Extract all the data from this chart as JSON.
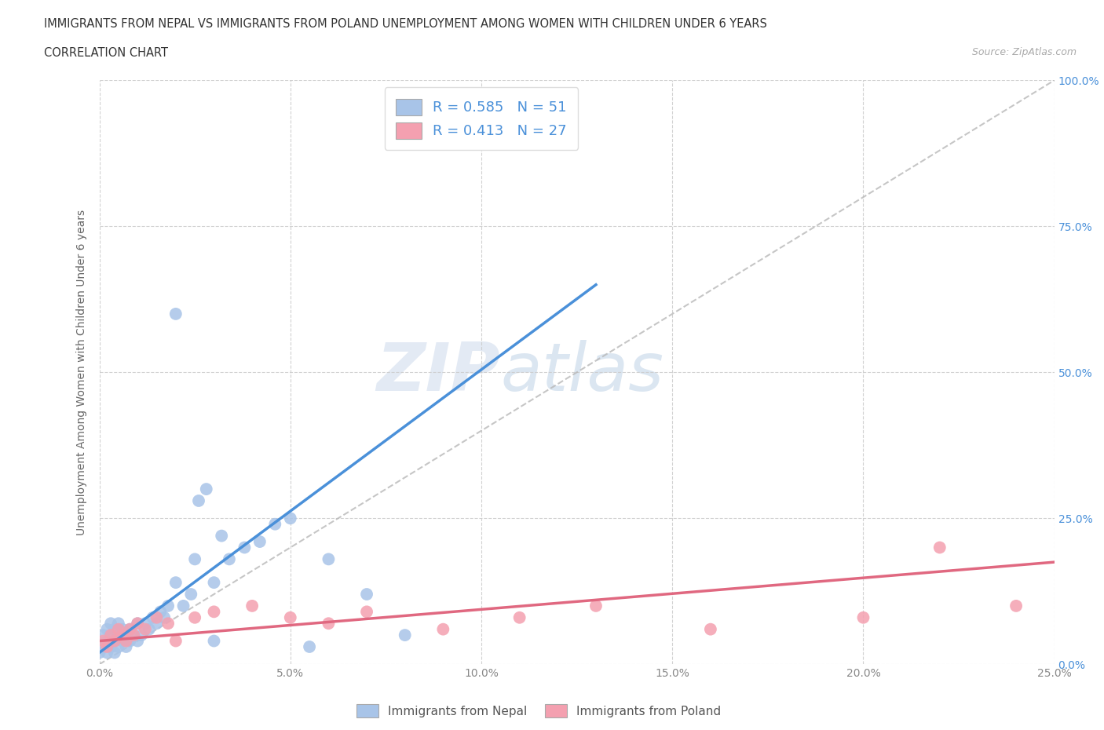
{
  "title_line1": "IMMIGRANTS FROM NEPAL VS IMMIGRANTS FROM POLAND UNEMPLOYMENT AMONG WOMEN WITH CHILDREN UNDER 6 YEARS",
  "title_line2": "CORRELATION CHART",
  "source": "Source: ZipAtlas.com",
  "ylabel": "Unemployment Among Women with Children Under 6 years",
  "xlim": [
    0.0,
    0.25
  ],
  "ylim": [
    0.0,
    1.0
  ],
  "xticks": [
    0.0,
    0.05,
    0.1,
    0.15,
    0.2,
    0.25
  ],
  "yticks": [
    0.0,
    0.25,
    0.5,
    0.75,
    1.0
  ],
  "xticklabels": [
    "0.0%",
    "5.0%",
    "10.0%",
    "15.0%",
    "20.0%",
    "25.0%"
  ],
  "yticklabels_right": [
    "0.0%",
    "25.0%",
    "50.0%",
    "75.0%",
    "100.0%"
  ],
  "nepal_color": "#a8c4e8",
  "poland_color": "#f4a0b0",
  "nepal_line_color": "#4a90d9",
  "poland_line_color": "#e06880",
  "diag_color": "#b8b8b8",
  "R_nepal": 0.585,
  "N_nepal": 51,
  "R_poland": 0.413,
  "N_poland": 27,
  "nepal_x": [
    0.0,
    0.001,
    0.001,
    0.002,
    0.002,
    0.002,
    0.003,
    0.003,
    0.003,
    0.004,
    0.004,
    0.004,
    0.005,
    0.005,
    0.005,
    0.006,
    0.006,
    0.007,
    0.007,
    0.008,
    0.008,
    0.009,
    0.01,
    0.01,
    0.011,
    0.012,
    0.013,
    0.014,
    0.015,
    0.016,
    0.017,
    0.018,
    0.02,
    0.022,
    0.024,
    0.026,
    0.028,
    0.03,
    0.032,
    0.034,
    0.038,
    0.042,
    0.046,
    0.05,
    0.055,
    0.06,
    0.07,
    0.08,
    0.02,
    0.025,
    0.03
  ],
  "nepal_y": [
    0.02,
    0.03,
    0.05,
    0.02,
    0.04,
    0.06,
    0.03,
    0.05,
    0.07,
    0.02,
    0.04,
    0.06,
    0.03,
    0.05,
    0.07,
    0.04,
    0.06,
    0.03,
    0.05,
    0.04,
    0.06,
    0.05,
    0.04,
    0.07,
    0.05,
    0.07,
    0.06,
    0.08,
    0.07,
    0.09,
    0.08,
    0.1,
    0.6,
    0.1,
    0.12,
    0.28,
    0.3,
    0.14,
    0.22,
    0.18,
    0.2,
    0.21,
    0.24,
    0.25,
    0.03,
    0.18,
    0.12,
    0.05,
    0.14,
    0.18,
    0.04
  ],
  "nepal_trend_x": [
    0.0,
    0.13
  ],
  "nepal_trend_y": [
    0.02,
    0.65
  ],
  "poland_x": [
    0.001,
    0.002,
    0.003,
    0.004,
    0.005,
    0.006,
    0.007,
    0.008,
    0.009,
    0.01,
    0.012,
    0.015,
    0.018,
    0.02,
    0.025,
    0.03,
    0.04,
    0.05,
    0.06,
    0.07,
    0.09,
    0.11,
    0.13,
    0.16,
    0.2,
    0.22,
    0.24
  ],
  "poland_y": [
    0.04,
    0.03,
    0.05,
    0.04,
    0.06,
    0.05,
    0.04,
    0.06,
    0.05,
    0.07,
    0.06,
    0.08,
    0.07,
    0.04,
    0.08,
    0.09,
    0.1,
    0.08,
    0.07,
    0.09,
    0.06,
    0.08,
    0.1,
    0.06,
    0.08,
    0.2,
    0.1
  ],
  "poland_trend_x": [
    0.0,
    0.25
  ],
  "poland_trend_y": [
    0.04,
    0.175
  ],
  "watermark_zip": "ZIP",
  "watermark_atlas": "atlas",
  "background_color": "#ffffff",
  "grid_color": "#cccccc",
  "tick_color": "#888888",
  "right_tick_color": "#4a90d9",
  "legend1_label": "Immigrants from Nepal",
  "legend2_label": "Immigrants from Poland"
}
